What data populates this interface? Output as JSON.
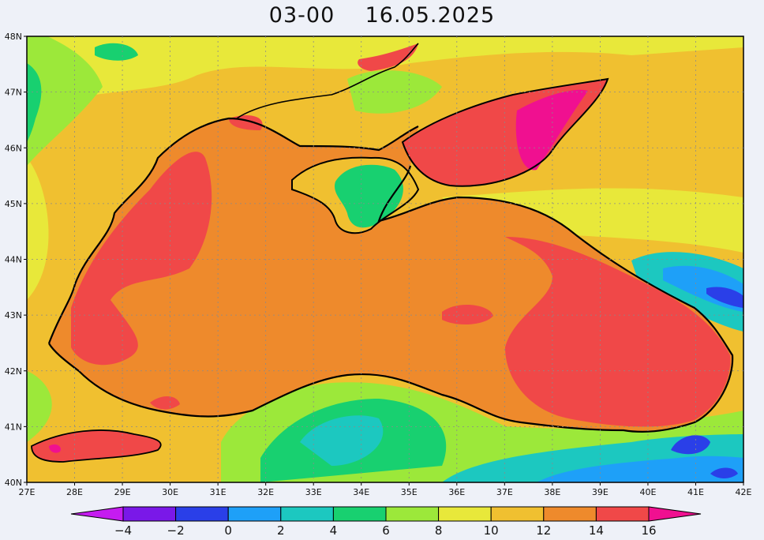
{
  "title": {
    "time": "03-00",
    "date": "16.05.2025"
  },
  "map": {
    "lat_labels": [
      "48N",
      "47N",
      "46N",
      "45N",
      "44N",
      "43N",
      "42N",
      "41N",
      "40N"
    ],
    "lon_labels": [
      "27E",
      "28E",
      "29E",
      "30E",
      "31E",
      "32E",
      "33E",
      "34E",
      "35E",
      "36E",
      "37E",
      "38E",
      "39E",
      "40E",
      "41E",
      "42E"
    ]
  },
  "colorbar": {
    "labels": [
      "−4",
      "−2",
      "0",
      "2",
      "4",
      "6",
      "8",
      "10",
      "12",
      "14",
      "16"
    ],
    "colors": {
      "below_-4": "#c51cf0",
      "-4_-2": "#7a18e8",
      "-2_0": "#2a3fe8",
      "0_2": "#1ea0f8",
      "2_4": "#1cc8c0",
      "4_6": "#18d070",
      "6_8": "#9ce83a",
      "8_10": "#e8e83a",
      "10_12": "#f0c030",
      "12_14": "#ee8a2c",
      "14_16": "#f04848",
      "above_16": "#f01090"
    }
  }
}
